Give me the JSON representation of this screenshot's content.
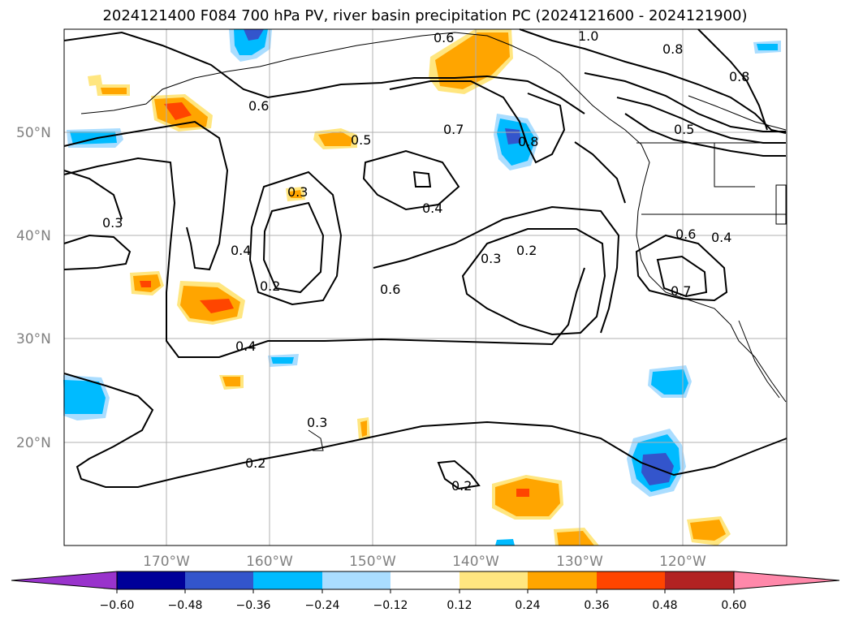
{
  "title": "2024121400 F084 700 hPa PV, river basin precipitation PC (2024121600 - 2024121900)",
  "map": {
    "lat_labels": [
      "50°N",
      "40°N",
      "30°N",
      "20°N"
    ],
    "lon_labels": [
      "170°W",
      "160°W",
      "150°W",
      "140°W",
      "130°W",
      "120°W"
    ],
    "contour_labels": [
      "0.6",
      "1.0",
      "0.8",
      "0.8",
      "0.6",
      "0.5",
      "0.7",
      "0.8",
      "0.5",
      "0.3",
      "0.4",
      "0.3",
      "0.4",
      "0.2",
      "0.6",
      "0.3",
      "0.2",
      "0.6",
      "0.4",
      "0.7",
      "0.4",
      "0.3",
      "0.2",
      "0.2"
    ]
  },
  "colorbar": {
    "ticks": [
      "−0.60",
      "−0.48",
      "−0.36",
      "−0.24",
      "−0.12",
      "0.12",
      "0.24",
      "0.36",
      "0.48",
      "0.60"
    ],
    "colors": [
      "#9933cc",
      "#000099",
      "#3355cc",
      "#00bbff",
      "#aaddff",
      "#ffffff",
      "#ffe680",
      "#ffa500",
      "#ff4500",
      "#b22222",
      "#ff88aa"
    ]
  }
}
